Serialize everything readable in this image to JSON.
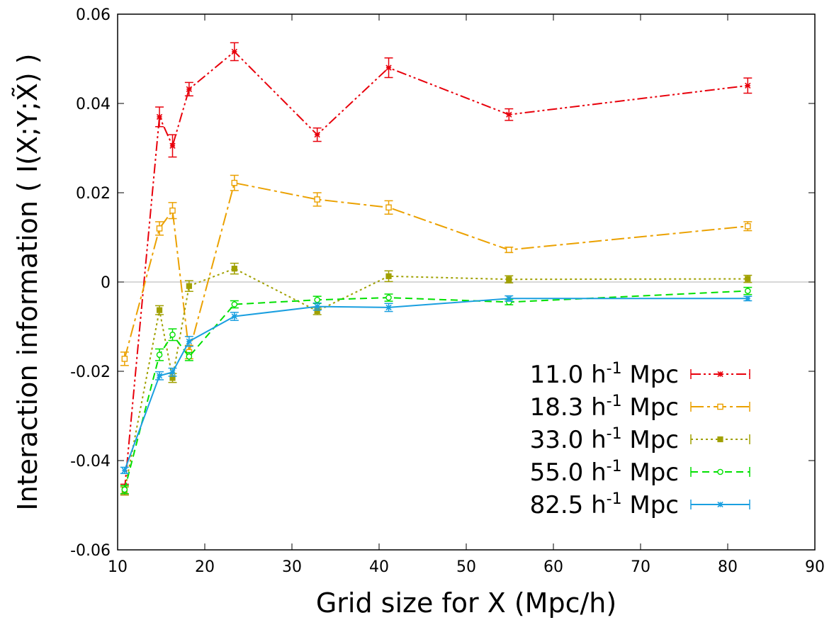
{
  "chart_data": {
    "type": "line",
    "xlabel": "Grid size for X (Mpc/h)",
    "ylabel": "Interaction information ( I(X;Y;X̃) )",
    "xlim": [
      10,
      90
    ],
    "ylim": [
      -0.06,
      0.06
    ],
    "x_ticks": [
      "10",
      "20",
      "30",
      "40",
      "50",
      "60",
      "70",
      "80",
      "90"
    ],
    "y_ticks": [
      "-0.06",
      "-0.04",
      "-0.02",
      "0",
      "0.02",
      "0.04",
      "0.06"
    ],
    "zero_line": true,
    "legend_position": "bottom-right",
    "x": [
      10.8,
      14.8,
      16.3,
      18.2,
      23.4,
      32.9,
      41.1,
      54.9,
      82.3
    ],
    "series": [
      {
        "name": "11.0",
        "color": "#e8000b",
        "dash": "14,4,3,4,3,4",
        "marker": "star",
        "values": [
          -0.0465,
          0.037,
          0.0305,
          0.0432,
          0.0516,
          0.033,
          0.048,
          0.0375,
          0.044
        ],
        "errors": [
          0.0012,
          0.0022,
          0.0025,
          0.0015,
          0.002,
          0.0015,
          0.0022,
          0.0013,
          0.0017
        ]
      },
      {
        "name": "18.3",
        "color": "#eba100",
        "dash": "18,5,4,5",
        "marker": "square-open",
        "values": [
          -0.0172,
          0.012,
          0.016,
          -0.0157,
          0.0222,
          0.0185,
          0.0167,
          0.0072,
          0.0125
        ],
        "errors": [
          0.0015,
          0.0015,
          0.0018,
          0.0015,
          0.0017,
          0.0015,
          0.0015,
          0.0006,
          0.001
        ]
      },
      {
        "name": "33.0",
        "color": "#a0a000",
        "dash": "3,4",
        "marker": "square-filled",
        "values": [
          -0.0468,
          -0.0063,
          -0.0215,
          -0.0009,
          0.003,
          -0.0065,
          0.0013,
          0.0006,
          0.0007
        ],
        "errors": [
          0.0009,
          0.001,
          0.001,
          0.0012,
          0.0012,
          0.0008,
          0.0012,
          0.0008,
          0.0008
        ]
      },
      {
        "name": "55.0",
        "color": "#00e000",
        "dash": "10,6",
        "marker": "circle-open",
        "values": [
          -0.0465,
          -0.0163,
          -0.0118,
          -0.0167,
          -0.005,
          -0.004,
          -0.0035,
          -0.0045,
          -0.002
        ],
        "errors": [
          0.0009,
          0.0013,
          0.0013,
          0.0009,
          0.0008,
          0.0008,
          0.0008,
          0.0006,
          0.0008
        ]
      },
      {
        "name": "82.5",
        "color": "#1a9fe0",
        "dash": "",
        "marker": "star",
        "values": [
          -0.0422,
          -0.021,
          -0.0202,
          -0.0133,
          -0.0077,
          -0.0055,
          -0.0057,
          -0.0037,
          -0.0037
        ],
        "errors": [
          0.0007,
          0.0009,
          0.0009,
          0.0011,
          0.0009,
          0.0008,
          0.0009,
          0.0006,
          0.0005
        ]
      }
    ],
    "legend_suffix": "Mpc",
    "legend_h": "h",
    "legend_exp": "-1"
  }
}
